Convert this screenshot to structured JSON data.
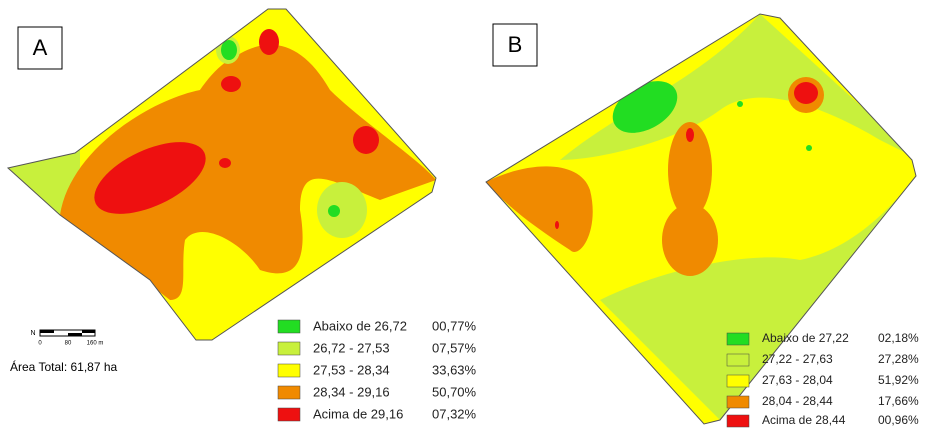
{
  "panels": [
    {
      "label": "A",
      "legend": [
        {
          "class": "Abaixo de 26,72",
          "percent": "00,77%"
        },
        {
          "class": "26,72 - 27,53",
          "percent": "07,57%"
        },
        {
          "class": "27,53 - 28,34",
          "percent": "33,63%"
        },
        {
          "class": "28,34 - 29,16",
          "percent": "50,70%"
        },
        {
          "class": "Acima de 29,16",
          "percent": "07,32%"
        }
      ]
    },
    {
      "label": "B",
      "legend": [
        {
          "class": "Abaixo de 27,22",
          "percent": "02,18%"
        },
        {
          "class": "27,22 - 27,63",
          "percent": "27,28%"
        },
        {
          "class": "27,63 - 28,04",
          "percent": "51,92%"
        },
        {
          "class": "28,04 - 28,44",
          "percent": "17,66%"
        },
        {
          "class": "Acima de 28,44",
          "percent": "00,96%"
        }
      ]
    }
  ],
  "north": "N",
  "scale_labels": [
    "0",
    "80",
    "160 m"
  ],
  "area_total": "Área Total: 61,87 ha"
}
